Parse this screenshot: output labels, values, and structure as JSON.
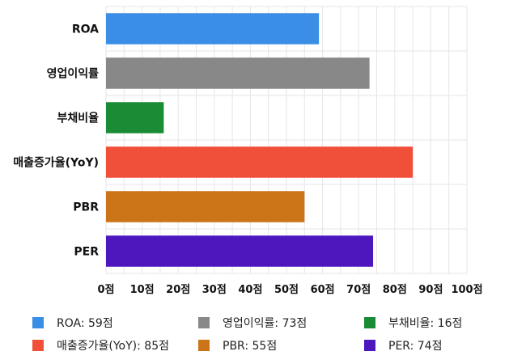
{
  "chart_data": {
    "type": "bar",
    "orientation": "horizontal",
    "categories": [
      "ROA",
      "영업이익률",
      "부채비율",
      "매출증가율(YoY)",
      "PBR",
      "PER"
    ],
    "values": [
      59,
      73,
      16,
      85,
      55,
      74
    ],
    "colors": [
      "#3a8ee6",
      "#888888",
      "#1a8c36",
      "#f04f3a",
      "#cc7418",
      "#4d17be"
    ],
    "xlim": [
      0,
      100
    ],
    "x_ticks": [
      0,
      10,
      20,
      30,
      40,
      50,
      60,
      70,
      80,
      90,
      100
    ],
    "x_tick_labels": [
      "0점",
      "10점",
      "20점",
      "30점",
      "40점",
      "50점",
      "60점",
      "70점",
      "80점",
      "90점",
      "100점"
    ],
    "grid": true,
    "legend_position": "bottom",
    "legend": [
      {
        "label": "ROA: 59점",
        "color": "#3a8ee6"
      },
      {
        "label": "영업이익률: 73점",
        "color": "#888888"
      },
      {
        "label": "부채비율: 16점",
        "color": "#1a8c36"
      },
      {
        "label": "매출증가율(YoY): 85점",
        "color": "#f04f3a"
      },
      {
        "label": "PBR: 55점",
        "color": "#cc7418"
      },
      {
        "label": "PER: 74점",
        "color": "#4d17be"
      }
    ]
  }
}
